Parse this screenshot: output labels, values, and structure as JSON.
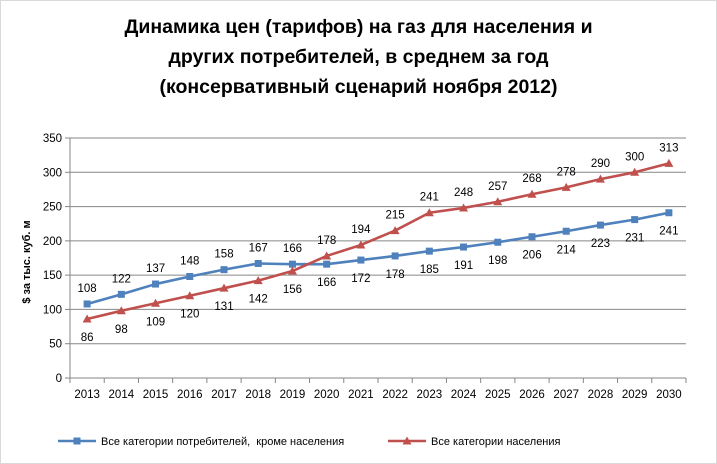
{
  "chart_data": {
    "type": "line",
    "title_lines": [
      "Динамика цен (тарифов) на газ для населения и",
      "других потребителей, в среднем за год",
      "(консервативный сценарий ноября 2012)"
    ],
    "ylabel": "$ за тыс. куб. м",
    "xlabel": "",
    "ylim": [
      0,
      350
    ],
    "yticks": [
      0,
      50,
      100,
      150,
      200,
      250,
      300,
      350
    ],
    "grid": true,
    "legend_position": "bottom",
    "categories": [
      "2013",
      "2014",
      "2015",
      "2016",
      "2017",
      "2018",
      "2019",
      "2020",
      "2021",
      "2022",
      "2023",
      "2024",
      "2025",
      "2026",
      "2027",
      "2028",
      "2029",
      "2030"
    ],
    "series": [
      {
        "name": "Все категории потребителей,  кроме населения",
        "color": "#4f81bd",
        "marker": "square",
        "values": [
          108,
          122,
          137,
          148,
          158,
          167,
          166,
          166,
          172,
          178,
          185,
          191,
          198,
          206,
          214,
          223,
          231,
          241
        ]
      },
      {
        "name": "Все категории населения",
        "color": "#c0504d",
        "marker": "triangle",
        "values": [
          86,
          98,
          109,
          120,
          131,
          142,
          156,
          178,
          194,
          215,
          241,
          248,
          257,
          268,
          278,
          290,
          300,
          313
        ]
      }
    ]
  }
}
